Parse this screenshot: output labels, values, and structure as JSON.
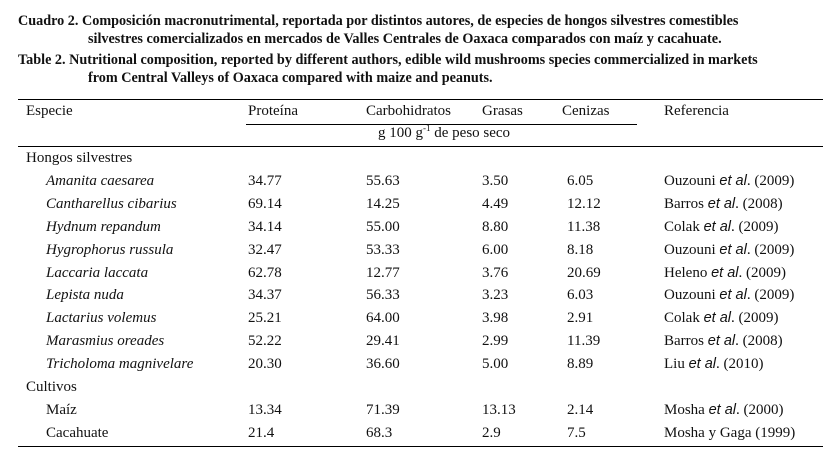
{
  "caption": {
    "es_line1": "Cuadro 2. Composición macronutrimental, reportada por distintos autores, de especies de hongos silvestres comestibles",
    "es_line2": "silvestres comercializados en mercados de Valles Centrales de Oaxaca comparados con maíz y cacahuate.",
    "en_line1": "Table 2. Nutritional composition, reported by different authors, edible wild mushrooms species commercialized in markets",
    "en_line2": "from Central Valleys of Oaxaca compared with maize and peanuts."
  },
  "table": {
    "headers": {
      "species": "Especie",
      "protein": "Proteína",
      "carbs": "Carbohidratos",
      "fat": "Grasas",
      "ash": "Cenizas",
      "ref": "Referencia"
    },
    "unit": {
      "pre": "g 100 g",
      "sup": "-1",
      "post": " de peso seco"
    },
    "groups": [
      {
        "label": "Hongos silvestres",
        "rows": [
          {
            "species": "Amanita caesarea",
            "protein": "34.77",
            "carbs": "55.63",
            "fat": "3.50",
            "ash": "6.05",
            "ref_author": "Ouzouni",
            "ref_etal": "et al",
            "ref_year": ". (2009)"
          },
          {
            "species": "Cantharellus cibarius",
            "protein": "69.14",
            "carbs": "14.25",
            "fat": "4.49",
            "ash": "12.12",
            "ref_author": "Barros",
            "ref_etal": "et al",
            "ref_year": ". (2008)"
          },
          {
            "species": "Hydnum repandum",
            "protein": "34.14",
            "carbs": "55.00",
            "fat": "8.80",
            "ash": "11.38",
            "ref_author": "Colak",
            "ref_etal": "et al",
            "ref_year": ". (2009)"
          },
          {
            "species": "Hygrophorus russula",
            "protein": "32.47",
            "carbs": "53.33",
            "fat": "6.00",
            "ash": "8.18",
            "ref_author": "Ouzouni",
            "ref_etal": "et al",
            "ref_year": ". (2009)"
          },
          {
            "species": "Laccaria laccata",
            "protein": "62.78",
            "carbs": "12.77",
            "fat": "3.76",
            "ash": "20.69",
            "ref_author": "Heleno",
            "ref_etal": "et al",
            "ref_year": ". (2009)"
          },
          {
            "species": "Lepista nuda",
            "protein": "34.37",
            "carbs": "56.33",
            "fat": "3.23",
            "ash": "6.03",
            "ref_author": "Ouzouni",
            "ref_etal": "et al",
            "ref_year": ". (2009)"
          },
          {
            "species": "Lactarius volemus",
            "protein": "25.21",
            "carbs": "64.00",
            "fat": "3.98",
            "ash": "2.91",
            "ref_author": "Colak",
            "ref_etal": "et al",
            "ref_year": ". (2009)"
          },
          {
            "species": "Marasmius oreades",
            "protein": "52.22",
            "carbs": "29.41",
            "fat": "2.99",
            "ash": "11.39",
            "ref_author": "Barros",
            "ref_etal": "et al",
            "ref_year": ". (2008)"
          },
          {
            "species": "Tricholoma magnivelare",
            "protein": "20.30",
            "carbs": "36.60",
            "fat": "5.00",
            "ash": "8.89",
            "ref_author": "Liu",
            "ref_etal": "et al",
            "ref_year": ". (2010)"
          }
        ]
      },
      {
        "label": "Cultivos",
        "rows": [
          {
            "species": "Maíz",
            "protein": "13.34",
            "carbs": "71.39",
            "fat": "13.13",
            "ash": "2.14",
            "ref_author": "Mosha",
            "ref_etal": "et al",
            "ref_year": ". (2000)"
          },
          {
            "species": "Cacahuate",
            "protein": "21.4",
            "carbs": "68.3",
            "fat": "2.9",
            "ash": "7.5",
            "ref_author": "Mosha y Gaga (1999)",
            "ref_etal": "",
            "ref_year": ""
          }
        ]
      }
    ]
  }
}
